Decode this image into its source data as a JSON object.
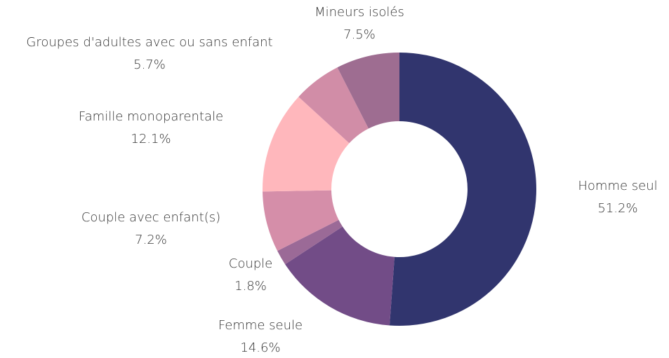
{
  "chart_data": {
    "type": "donut",
    "categories": [
      "Homme seul",
      "Femme seule",
      "Couple",
      "Couple avec enfant(s)",
      "Famille monoparentale",
      "Groupes d'adultes avec ou sans enfant",
      "Mineurs isolés"
    ],
    "values": [
      51.2,
      14.6,
      1.8,
      7.2,
      12.1,
      5.7,
      7.5
    ],
    "value_labels": [
      "51.2%",
      "14.6%",
      "1.8%",
      "7.2%",
      "12.1%",
      "5.7%",
      "7.5%"
    ],
    "colors": [
      "#31356e",
      "#724c87",
      "#9b6a97",
      "#d58ea9",
      "#ffb7bc",
      "#d18da7",
      "#9e6d91"
    ]
  }
}
